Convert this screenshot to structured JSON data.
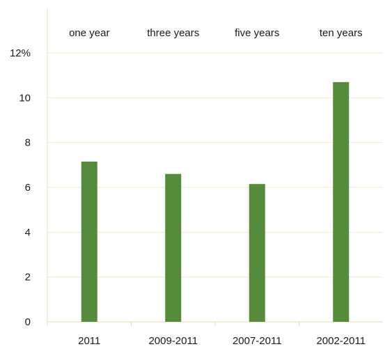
{
  "chart_data": {
    "type": "bar",
    "categories": [
      "2011",
      "2009-2011",
      "2007-2011",
      "2002-2011"
    ],
    "period_labels": [
      "one year",
      "three years",
      "five years",
      "ten years"
    ],
    "values": [
      7.15,
      6.6,
      6.15,
      10.7
    ],
    "y_ticks": [
      "0",
      "2",
      "4",
      "6",
      "8",
      "10",
      "12%"
    ],
    "ylim": [
      0,
      12
    ],
    "grid": true,
    "legend": "none",
    "colors": {
      "bar": "#558c3c",
      "grid": "#f2ebc4"
    }
  }
}
